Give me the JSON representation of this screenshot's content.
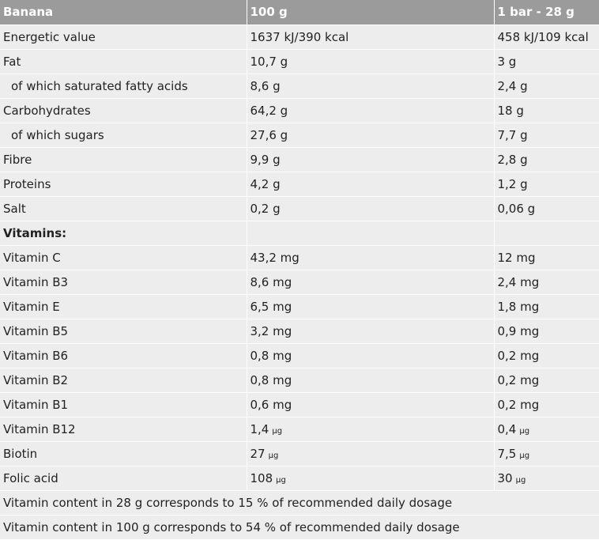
{
  "table": {
    "header": [
      "Banana",
      "100 g",
      "1 bar - 28 g"
    ],
    "rows": [
      {
        "cells": [
          "Energetic value",
          "1637 kJ/390 kcal",
          "458 kJ/109 kcal"
        ]
      },
      {
        "cells": [
          "Fat",
          "10,7 g",
          "3 g"
        ]
      },
      {
        "cells": [
          "of which saturated fatty acids",
          "8,6 g",
          "2,4 g"
        ],
        "indent": true
      },
      {
        "cells": [
          "Carbohydrates",
          "64,2 g",
          "18 g"
        ]
      },
      {
        "cells": [
          "of which sugars",
          "27,6 g",
          "7,7 g"
        ],
        "indent": true
      },
      {
        "cells": [
          "Fibre",
          "9,9 g",
          "2,8 g"
        ]
      },
      {
        "cells": [
          "Proteins",
          "4,2 g",
          "1,2 g"
        ]
      },
      {
        "cells": [
          "Salt",
          "0,2 g",
          "0,06 g"
        ]
      },
      {
        "cells": [
          "Vitamins:"
        ],
        "bold": true
      },
      {
        "cells": [
          "Vitamin C",
          "43,2 mg",
          "12 mg"
        ]
      },
      {
        "cells": [
          "Vitamin B3",
          "8,6 mg",
          "2,4 mg"
        ]
      },
      {
        "cells": [
          "Vitamin E",
          "6,5 mg",
          "1,8 mg"
        ]
      },
      {
        "cells": [
          "Vitamin B5",
          "3,2 mg",
          "0,9 mg"
        ]
      },
      {
        "cells": [
          "Vitamin B6",
          "0,8 mg",
          "0,2 mg"
        ]
      },
      {
        "cells": [
          "Vitamin B2",
          "0,8 mg",
          "0,2 mg"
        ]
      },
      {
        "cells": [
          "Vitamin B1",
          "0,6 mg",
          "0,2 mg"
        ]
      },
      {
        "cells": [
          "Vitamin B12",
          {
            "text": "1,4",
            "unit": "µg"
          },
          {
            "text": "0,4",
            "unit": "µg"
          }
        ]
      },
      {
        "cells": [
          "Biotin",
          {
            "text": "27",
            "unit": "µg"
          },
          {
            "text": "7,5",
            "unit": "µg"
          }
        ]
      },
      {
        "cells": [
          "Folic acid",
          {
            "text": "108",
            "unit": "µg"
          },
          {
            "text": "30",
            "unit": "µg"
          }
        ]
      }
    ],
    "footer": [
      "Vitamin content in 28 g corresponds to 15 % of recommended daily dosage",
      "Vitamin content in 100 g corresponds to 54 % of recommended daily dosage"
    ]
  }
}
